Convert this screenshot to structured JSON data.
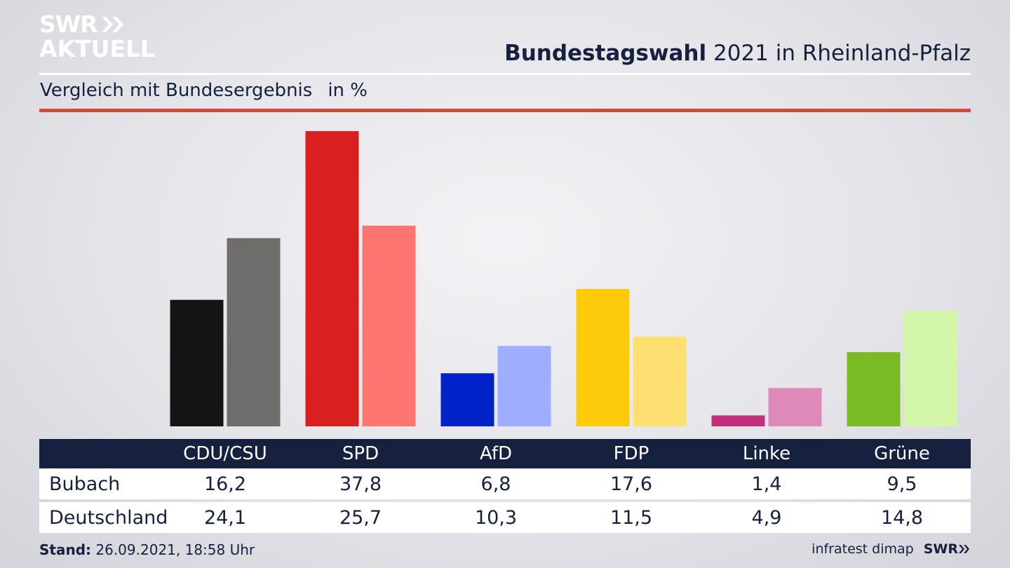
{
  "logo": {
    "line1": "SWR",
    "line2": "AKTUELL"
  },
  "header": {
    "title_bold": "Bundestagswahl",
    "title_rest": "2021 in Rheinland-Pfalz",
    "subtitle": "Vergleich mit Bundesergebnis",
    "unit": "in %"
  },
  "colors": {
    "navy": "#16213f",
    "accent_red_rule": "#d04a3c"
  },
  "chart_data": {
    "type": "bar",
    "categories": [
      "CDU/CSU",
      "SPD",
      "AfD",
      "FDP",
      "Linke",
      "Grüne"
    ],
    "series": [
      {
        "name": "Bubach",
        "values": [
          16.2,
          37.8,
          6.8,
          17.6,
          1.4,
          9.5
        ],
        "colors": [
          "#141414",
          "#d7201f",
          "#0022c8",
          "#fecb0b",
          "#c12f7c",
          "#78bb22"
        ]
      },
      {
        "name": "Deutschland",
        "values": [
          24.1,
          25.7,
          10.3,
          11.5,
          4.9,
          14.8
        ],
        "colors": [
          "#6f6d6b",
          "#fe7470",
          "#9eadfe",
          "#fde071",
          "#df89b9",
          "#d4f6a8"
        ]
      }
    ],
    "ylim": [
      0,
      40
    ],
    "grid": false,
    "legend": "table below"
  },
  "table": {
    "rows": [
      {
        "label": "Bubach",
        "values": [
          "16,2",
          "37,8",
          "6,8",
          "17,6",
          "1,4",
          "9,5"
        ]
      },
      {
        "label": "Deutschland",
        "values": [
          "24,1",
          "25,7",
          "10,3",
          "11,5",
          "4,9",
          "14,8"
        ]
      }
    ]
  },
  "footer": {
    "stand_label": "Stand:",
    "stand_value": "26.09.2021, 18:58 Uhr",
    "source": "infratest dimap",
    "brand": "SWR"
  }
}
